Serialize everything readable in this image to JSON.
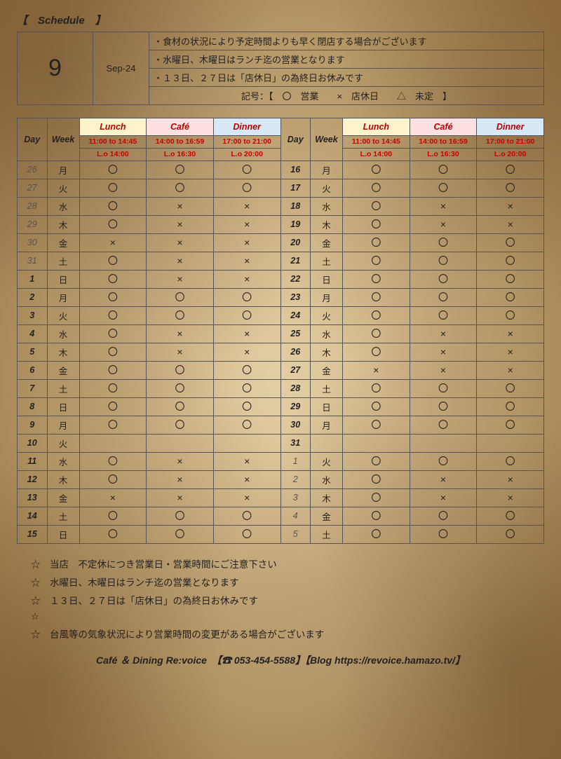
{
  "title": "【　Schedule　】",
  "header": {
    "month_number": "9",
    "month_label": "Sep-24",
    "notes": [
      "・食材の状況により予定時間よりも早く閉店する場合がございます",
      "・水曜日、木曜日はランチ迄の営業となります",
      "・１３日、２７日は「店休日」の為終日お休みです",
      "記号：【　〇　営業　　×　店休日　　△　未定　】"
    ]
  },
  "columns": {
    "day": "Day",
    "week": "Week",
    "lunch": "Lunch",
    "cafe": "Café",
    "dinner": "Dinner",
    "lunch_time": "11:00 to 14:45",
    "cafe_time": "14:00 to 16:59",
    "dinner_time": "17:00 to 21:00",
    "lunch_lo": "L.o 14:00",
    "cafe_lo": "L.o 16:30",
    "dinner_lo": "L.o 20:00"
  },
  "left": [
    {
      "day": "26",
      "week": "月",
      "prev": true,
      "l": "〇",
      "c": "〇",
      "d": "〇"
    },
    {
      "day": "27",
      "week": "火",
      "prev": true,
      "l": "〇",
      "c": "〇",
      "d": "〇"
    },
    {
      "day": "28",
      "week": "水",
      "prev": true,
      "l": "〇",
      "c": "×",
      "d": "×"
    },
    {
      "day": "29",
      "week": "木",
      "prev": true,
      "l": "〇",
      "c": "×",
      "d": "×"
    },
    {
      "day": "30",
      "week": "金",
      "prev": true,
      "l": "×",
      "c": "×",
      "d": "×"
    },
    {
      "day": "31",
      "week": "土",
      "prev": true,
      "l": "〇",
      "c": "×",
      "d": "×"
    },
    {
      "day": "1",
      "week": "日",
      "l": "〇",
      "c": "×",
      "d": "×"
    },
    {
      "day": "2",
      "week": "月",
      "l": "〇",
      "c": "〇",
      "d": "〇"
    },
    {
      "day": "3",
      "week": "火",
      "l": "〇",
      "c": "〇",
      "d": "〇"
    },
    {
      "day": "4",
      "week": "水",
      "l": "〇",
      "c": "×",
      "d": "×"
    },
    {
      "day": "5",
      "week": "木",
      "l": "〇",
      "c": "×",
      "d": "×"
    },
    {
      "day": "6",
      "week": "金",
      "l": "〇",
      "c": "〇",
      "d": "〇"
    },
    {
      "day": "7",
      "week": "土",
      "l": "〇",
      "c": "〇",
      "d": "〇"
    },
    {
      "day": "8",
      "week": "日",
      "l": "〇",
      "c": "〇",
      "d": "〇"
    },
    {
      "day": "9",
      "week": "月",
      "l": "〇",
      "c": "〇",
      "d": "〇"
    },
    {
      "day": "10",
      "week": "火",
      "l": "",
      "c": "",
      "d": ""
    },
    {
      "day": "11",
      "week": "水",
      "l": "〇",
      "c": "×",
      "d": "×"
    },
    {
      "day": "12",
      "week": "木",
      "l": "〇",
      "c": "×",
      "d": "×"
    },
    {
      "day": "13",
      "week": "金",
      "l": "×",
      "c": "×",
      "d": "×"
    },
    {
      "day": "14",
      "week": "土",
      "l": "〇",
      "c": "〇",
      "d": "〇"
    },
    {
      "day": "15",
      "week": "日",
      "l": "〇",
      "c": "〇",
      "d": "〇"
    }
  ],
  "right": [
    {
      "day": "16",
      "week": "月",
      "l": "〇",
      "c": "〇",
      "d": "〇"
    },
    {
      "day": "17",
      "week": "火",
      "l": "〇",
      "c": "〇",
      "d": "〇"
    },
    {
      "day": "18",
      "week": "水",
      "l": "〇",
      "c": "×",
      "d": "×"
    },
    {
      "day": "19",
      "week": "木",
      "l": "〇",
      "c": "×",
      "d": "×"
    },
    {
      "day": "20",
      "week": "金",
      "l": "〇",
      "c": "〇",
      "d": "〇"
    },
    {
      "day": "21",
      "week": "土",
      "l": "〇",
      "c": "〇",
      "d": "〇"
    },
    {
      "day": "22",
      "week": "日",
      "l": "〇",
      "c": "〇",
      "d": "〇"
    },
    {
      "day": "23",
      "week": "月",
      "l": "〇",
      "c": "〇",
      "d": "〇"
    },
    {
      "day": "24",
      "week": "火",
      "l": "〇",
      "c": "〇",
      "d": "〇"
    },
    {
      "day": "25",
      "week": "水",
      "l": "〇",
      "c": "×",
      "d": "×"
    },
    {
      "day": "26",
      "week": "木",
      "l": "〇",
      "c": "×",
      "d": "×"
    },
    {
      "day": "27",
      "week": "金",
      "l": "×",
      "c": "×",
      "d": "×"
    },
    {
      "day": "28",
      "week": "土",
      "l": "〇",
      "c": "〇",
      "d": "〇"
    },
    {
      "day": "29",
      "week": "日",
      "l": "〇",
      "c": "〇",
      "d": "〇"
    },
    {
      "day": "30",
      "week": "月",
      "l": "〇",
      "c": "〇",
      "d": "〇"
    },
    {
      "day": "31",
      "week": "",
      "l": "",
      "c": "",
      "d": ""
    },
    {
      "day": "1",
      "week": "火",
      "next": true,
      "l": "〇",
      "c": "〇",
      "d": "〇"
    },
    {
      "day": "2",
      "week": "水",
      "next": true,
      "l": "〇",
      "c": "×",
      "d": "×"
    },
    {
      "day": "3",
      "week": "木",
      "next": true,
      "l": "〇",
      "c": "×",
      "d": "×"
    },
    {
      "day": "4",
      "week": "金",
      "next": true,
      "l": "〇",
      "c": "〇",
      "d": "〇"
    },
    {
      "day": "5",
      "week": "土",
      "next": true,
      "l": "〇",
      "c": "〇",
      "d": "〇"
    }
  ],
  "footer_notes": [
    "☆　当店　不定休につき営業日・営業時間にご注意下さい",
    "☆　水曜日、木曜日はランチ迄の営業となります",
    "☆　１３日、２７日は「店休日」の為終日お休みです",
    "☆",
    "☆　台風等の気象状況により営業時間の変更がある場合がございます"
  ],
  "contact": "Café ＆ Dining Re:voice　【☎ 053-454-5588】【Blog https://revoice.hamazo.tv/】"
}
